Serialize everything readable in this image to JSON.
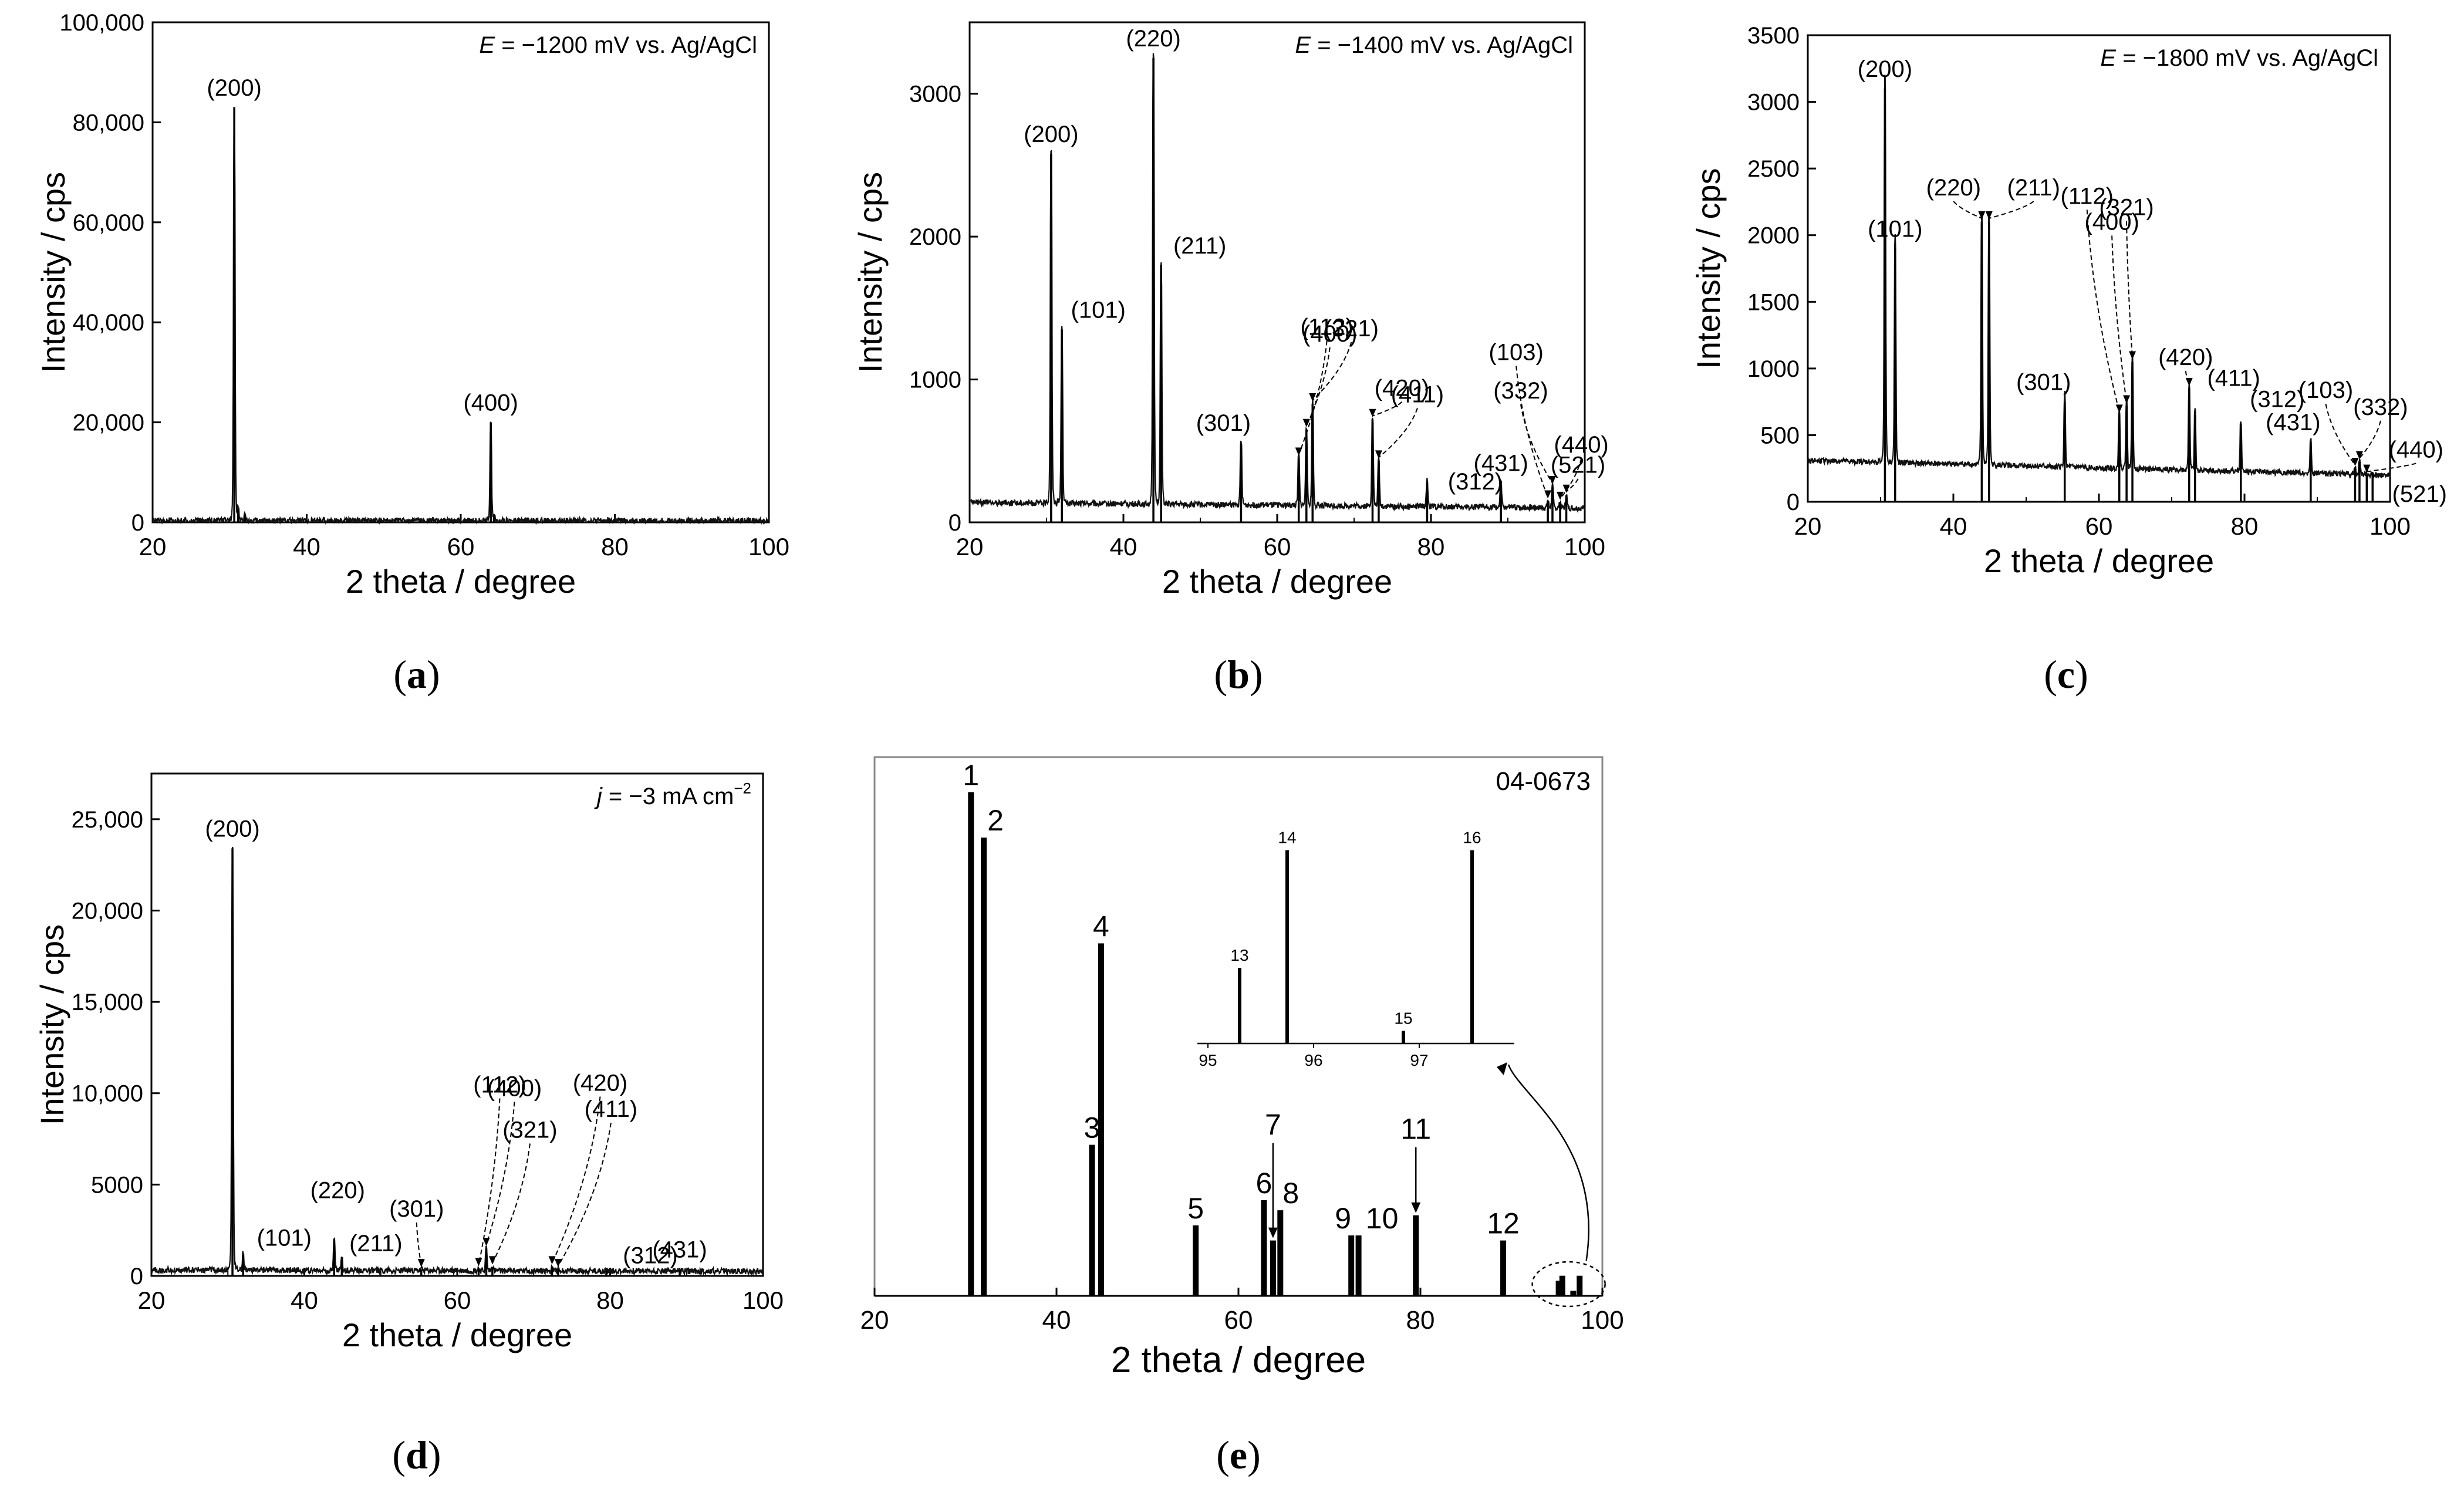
{
  "figure": {
    "captions": {
      "a": {
        "open": "(",
        "letter": "a",
        "close": ")"
      },
      "b": {
        "open": "(",
        "letter": "b",
        "close": ")"
      },
      "c": {
        "open": "(",
        "letter": "c",
        "close": ")"
      },
      "d": {
        "open": "(",
        "letter": "d",
        "close": ")"
      },
      "e": {
        "open": "(",
        "letter": "e",
        "close": ")"
      }
    }
  },
  "chart_data": [
    {
      "id": "a",
      "type": "line",
      "title": "",
      "annotation": {
        "prefix": "E",
        "text": " = −1200 mV vs. Ag/AgCl"
      },
      "xlabel": "2 theta / degree",
      "ylabel": "Intensity / cps",
      "xlim": [
        20,
        100
      ],
      "ylim": [
        0,
        100000
      ],
      "xticks": [
        20,
        40,
        60,
        80,
        100
      ],
      "yticks": [
        0,
        20000,
        40000,
        60000,
        80000,
        100000
      ],
      "ytick_labels": [
        "0",
        "20,000",
        "40,000",
        "60,000",
        "80,000",
        "100,000"
      ],
      "baseline": 300,
      "peaks": [
        {
          "x": 30.6,
          "y": 83000,
          "label": "(200)"
        },
        {
          "x": 31.1,
          "y": 2500,
          "label": ""
        },
        {
          "x": 32.0,
          "y": 1500,
          "label": ""
        },
        {
          "x": 63.9,
          "y": 20000,
          "label": "(400)"
        },
        {
          "x": 64.3,
          "y": 1500,
          "label": ""
        }
      ]
    },
    {
      "id": "b",
      "type": "line",
      "title": "",
      "annotation": {
        "prefix": "E",
        "text": " = −1400 mV vs. Ag/AgCl"
      },
      "xlabel": "2 theta / degree",
      "ylabel": "Intensity / cps",
      "xlim": [
        20,
        100
      ],
      "ylim": [
        0,
        3500
      ],
      "xticks": [
        20,
        40,
        60,
        80,
        100
      ],
      "yticks": [
        0,
        1000,
        2000,
        3000
      ],
      "ytick_labels": [
        "0",
        "1000",
        "2000",
        "3000"
      ],
      "baseline": 100,
      "peaks": [
        {
          "x": 30.6,
          "y": 2580,
          "label": "(200)"
        },
        {
          "x": 32.0,
          "y": 1350,
          "label": "(101)"
        },
        {
          "x": 43.9,
          "y": 3250,
          "label": "(220)"
        },
        {
          "x": 44.9,
          "y": 1800,
          "label": "(211)"
        },
        {
          "x": 55.3,
          "y": 550,
          "label": "(301)"
        },
        {
          "x": 62.8,
          "y": 450,
          "label": "(112)"
        },
        {
          "x": 63.8,
          "y": 650,
          "label": "(400)"
        },
        {
          "x": 64.6,
          "y": 830,
          "label": "(321)"
        },
        {
          "x": 72.4,
          "y": 720,
          "label": "(420)"
        },
        {
          "x": 73.2,
          "y": 430,
          "label": "(411)"
        },
        {
          "x": 79.5,
          "y": 280,
          "label": "(312)"
        },
        {
          "x": 89.1,
          "y": 270,
          "label": "(431)"
        },
        {
          "x": 95.2,
          "y": 150,
          "label": "(103)"
        },
        {
          "x": 95.8,
          "y": 250,
          "label": "(332)"
        },
        {
          "x": 96.8,
          "y": 140,
          "label": "(440)"
        },
        {
          "x": 97.6,
          "y": 190,
          "label": "(521)"
        }
      ]
    },
    {
      "id": "c",
      "type": "line",
      "title": "",
      "annotation": {
        "prefix": "E",
        "text": " = −1800 mV vs. Ag/AgCl"
      },
      "xlabel": "2 theta / degree",
      "ylabel": "Intensity / cps",
      "xlim": [
        20,
        100
      ],
      "ylim": [
        0,
        3500
      ],
      "xticks": [
        20,
        40,
        60,
        80,
        100
      ],
      "yticks": [
        0,
        500,
        1000,
        1500,
        2000,
        2500,
        3000,
        3500
      ],
      "ytick_labels": [
        "0",
        "500",
        "1000",
        "1500",
        "2000",
        "2500",
        "3000",
        "3500"
      ],
      "baseline": 200,
      "peaks": [
        {
          "x": 30.6,
          "y": 3100,
          "label": "(200)"
        },
        {
          "x": 32.0,
          "y": 1900,
          "label": "(101)"
        },
        {
          "x": 43.9,
          "y": 2100,
          "label": "(220)"
        },
        {
          "x": 44.9,
          "y": 2100,
          "label": "(211)"
        },
        {
          "x": 55.3,
          "y": 750,
          "label": "(301)"
        },
        {
          "x": 62.8,
          "y": 650,
          "label": "(112)"
        },
        {
          "x": 63.8,
          "y": 720,
          "label": "(400)"
        },
        {
          "x": 64.6,
          "y": 1050,
          "label": "(321)"
        },
        {
          "x": 72.4,
          "y": 850,
          "label": "(420)"
        },
        {
          "x": 73.2,
          "y": 650,
          "label": "(411)"
        },
        {
          "x": 79.5,
          "y": 580,
          "label": "(312)"
        },
        {
          "x": 89.1,
          "y": 450,
          "label": "(431)"
        },
        {
          "x": 95.2,
          "y": 250,
          "label": "(103)"
        },
        {
          "x": 95.8,
          "y": 300,
          "label": "(332)"
        },
        {
          "x": 96.8,
          "y": 200,
          "label": "(440)"
        },
        {
          "x": 97.6,
          "y": 220,
          "label": "(521)"
        }
      ]
    },
    {
      "id": "d",
      "type": "line",
      "title": "",
      "annotation": {
        "prefix": "j",
        "text": " = −3 mA cm",
        "sup": "−2"
      },
      "xlabel": "2 theta / degree",
      "ylabel": "Intensity / cps",
      "xlim": [
        20,
        100
      ],
      "ylim": [
        0,
        27500
      ],
      "xticks": [
        20,
        40,
        60,
        80,
        100
      ],
      "yticks": [
        0,
        5000,
        10000,
        15000,
        20000,
        25000
      ],
      "ytick_labels": [
        "0",
        "5000",
        "10,000",
        "15,000",
        "20,000",
        "25,000"
      ],
      "baseline": 250,
      "peaks": [
        {
          "x": 30.6,
          "y": 23400,
          "label": "(200)"
        },
        {
          "x": 32.0,
          "y": 1200,
          "label": "(101)"
        },
        {
          "x": 43.9,
          "y": 2000,
          "label": "(220)"
        },
        {
          "x": 44.9,
          "y": 900,
          "label": "(211)"
        },
        {
          "x": 55.3,
          "y": 350,
          "label": "(301)"
        },
        {
          "x": 62.8,
          "y": 400,
          "label": "(112)"
        },
        {
          "x": 63.8,
          "y": 1500,
          "label": "(400)"
        },
        {
          "x": 64.6,
          "y": 500,
          "label": "(321)"
        },
        {
          "x": 72.4,
          "y": 500,
          "label": "(420)"
        },
        {
          "x": 73.2,
          "y": 350,
          "label": "(411)"
        },
        {
          "x": 79.5,
          "y": 300,
          "label": "(312)"
        },
        {
          "x": 89.1,
          "y": 300,
          "label": "(431)"
        }
      ]
    },
    {
      "id": "e",
      "type": "bar",
      "title": "04-0673",
      "xlabel": "2 theta / degree",
      "ylabel": "",
      "xlim": [
        20,
        100
      ],
      "ylim": [
        0,
        100
      ],
      "xticks": [
        20,
        40,
        60,
        80,
        100
      ],
      "bars": [
        {
          "x": 30.6,
          "y": 100,
          "label": "1"
        },
        {
          "x": 32.0,
          "y": 91,
          "label": "2"
        },
        {
          "x": 43.9,
          "y": 30,
          "label": "3"
        },
        {
          "x": 44.9,
          "y": 70,
          "label": "4"
        },
        {
          "x": 55.3,
          "y": 14,
          "label": "5"
        },
        {
          "x": 62.8,
          "y": 19,
          "label": "6"
        },
        {
          "x": 63.8,
          "y": 11,
          "label": "7"
        },
        {
          "x": 64.6,
          "y": 17,
          "label": "8"
        },
        {
          "x": 72.4,
          "y": 12,
          "label": "9"
        },
        {
          "x": 73.2,
          "y": 12,
          "label": "10"
        },
        {
          "x": 79.5,
          "y": 16,
          "label": "11"
        },
        {
          "x": 89.1,
          "y": 11,
          "label": "12"
        },
        {
          "x": 95.2,
          "y": 3,
          "label": ""
        },
        {
          "x": 95.6,
          "y": 4,
          "label": ""
        },
        {
          "x": 96.8,
          "y": 1,
          "label": ""
        },
        {
          "x": 97.5,
          "y": 4,
          "label": ""
        }
      ],
      "inset": {
        "xlim": [
          94.9,
          97.9
        ],
        "ylim": [
          0,
          100
        ],
        "xticks": [
          95,
          96,
          97
        ],
        "bars": [
          {
            "x": 95.3,
            "y": 36,
            "label": "13"
          },
          {
            "x": 95.75,
            "y": 92,
            "label": "14"
          },
          {
            "x": 96.85,
            "y": 6,
            "label": "15"
          },
          {
            "x": 97.5,
            "y": 92,
            "label": "16"
          }
        ]
      }
    }
  ]
}
